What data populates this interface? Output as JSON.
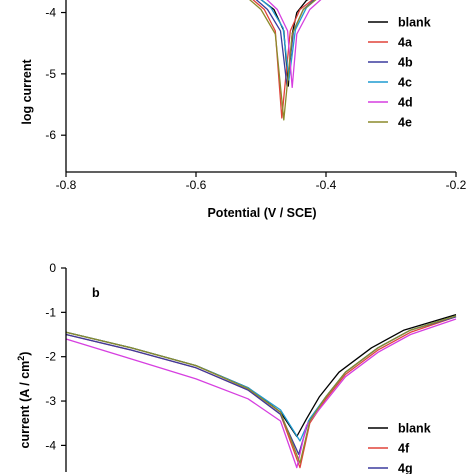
{
  "chart_data": [
    {
      "type": "line",
      "panel_label": "",
      "xlabel": "Potential  (V / SCE)",
      "ylabel": "log current ",
      "ylim": [
        -6.6,
        -3.6
      ],
      "xlim": [
        -0.8,
        -0.2
      ],
      "xticks": [
        "-0.8",
        "-0.6",
        "-0.4",
        "-0.2"
      ],
      "xtick_values": [
        -0.8,
        -0.6,
        -0.4,
        -0.2
      ],
      "yticks": [
        "-4",
        "-5",
        "-6"
      ],
      "ytick_values": [
        -4,
        -5,
        -6
      ],
      "legend_position": "right",
      "series": [
        {
          "name": "blank",
          "color": "#000000",
          "x": [
            -0.505,
            -0.48,
            -0.465,
            -0.458,
            -0.452,
            -0.445,
            -0.43,
            -0.39
          ],
          "y": [
            -3.75,
            -3.95,
            -4.3,
            -5.2,
            -4.35,
            -4.0,
            -3.8,
            -3.6
          ]
        },
        {
          "name": "4a",
          "color": "#e0433a",
          "x": [
            -0.52,
            -0.495,
            -0.478,
            -0.468,
            -0.455,
            -0.44,
            -0.4
          ],
          "y": [
            -3.72,
            -3.95,
            -4.3,
            -5.72,
            -4.3,
            -3.95,
            -3.62
          ]
        },
        {
          "name": "4b",
          "color": "#3b3b9e",
          "x": [
            -0.515,
            -0.49,
            -0.47,
            -0.46,
            -0.45,
            -0.435,
            -0.4
          ],
          "y": [
            -3.72,
            -3.95,
            -4.3,
            -5.2,
            -4.3,
            -3.95,
            -3.62
          ]
        },
        {
          "name": "4c",
          "color": "#1f9bd1",
          "x": [
            -0.51,
            -0.485,
            -0.466,
            -0.457,
            -0.447,
            -0.43,
            -0.395
          ],
          "y": [
            -3.7,
            -3.92,
            -4.25,
            -5.1,
            -4.28,
            -3.92,
            -3.6
          ]
        },
        {
          "name": "4d",
          "color": "#d63fe0",
          "x": [
            -0.5,
            -0.475,
            -0.459,
            -0.452,
            -0.445,
            -0.425,
            -0.39
          ],
          "y": [
            -3.7,
            -3.95,
            -4.3,
            -5.22,
            -4.35,
            -3.95,
            -3.62
          ]
        },
        {
          "name": "4e",
          "color": "#8c8a2b",
          "x": [
            -0.525,
            -0.5,
            -0.478,
            -0.465,
            -0.452,
            -0.435,
            -0.395
          ],
          "y": [
            -3.72,
            -3.95,
            -4.35,
            -5.75,
            -4.35,
            -3.95,
            -3.62
          ]
        }
      ]
    },
    {
      "type": "line",
      "panel_label": "b",
      "xlabel": "",
      "ylabel": "current (A / cm",
      "ylabel_sup": "2",
      "ylabel_tail": ")",
      "ylim": [
        -4.6,
        0
      ],
      "xlim": [
        -0.8,
        -0.2
      ],
      "xticks": [],
      "xtick_values": [],
      "yticks": [
        "0",
        "-1",
        "-2",
        "-3",
        "-4"
      ],
      "ytick_values": [
        0,
        -1,
        -2,
        -3,
        -4
      ],
      "legend_position": "bottom-right",
      "series": [
        {
          "name": "blank",
          "color": "#000000",
          "x": [
            -0.8,
            -0.7,
            -0.6,
            -0.52,
            -0.47,
            -0.445,
            -0.43,
            -0.41,
            -0.38,
            -0.33,
            -0.28,
            -0.2
          ],
          "y": [
            -1.45,
            -1.8,
            -2.2,
            -2.7,
            -3.25,
            -3.8,
            -3.4,
            -2.9,
            -2.35,
            -1.8,
            -1.4,
            -1.05
          ]
        },
        {
          "name": "4f",
          "color": "#e0433a",
          "x": [
            -0.8,
            -0.7,
            -0.6,
            -0.52,
            -0.47,
            -0.44,
            -0.425,
            -0.4,
            -0.37,
            -0.32,
            -0.27,
            -0.2
          ],
          "y": [
            -1.5,
            -1.85,
            -2.25,
            -2.75,
            -3.3,
            -4.5,
            -3.5,
            -2.95,
            -2.4,
            -1.85,
            -1.45,
            -1.1
          ]
        },
        {
          "name": "4g",
          "color": "#3b3b9e",
          "x": [
            -0.8,
            -0.7,
            -0.6,
            -0.52,
            -0.47,
            -0.442,
            -0.427,
            -0.4,
            -0.37,
            -0.32,
            -0.27,
            -0.2
          ],
          "y": [
            -1.5,
            -1.85,
            -2.25,
            -2.75,
            -3.3,
            -4.2,
            -3.45,
            -2.9,
            -2.35,
            -1.8,
            -1.4,
            -1.1
          ]
        },
        {
          "name": "",
          "color": "#1f9bd1",
          "x": [
            -0.8,
            -0.7,
            -0.6,
            -0.52,
            -0.47,
            -0.44,
            -0.425,
            -0.4,
            -0.37,
            -0.32,
            -0.27,
            -0.2
          ],
          "y": [
            -1.45,
            -1.8,
            -2.2,
            -2.7,
            -3.2,
            -3.9,
            -3.4,
            -2.9,
            -2.35,
            -1.8,
            -1.4,
            -1.08
          ]
        },
        {
          "name": "",
          "color": "#d63fe0",
          "x": [
            -0.8,
            -0.7,
            -0.6,
            -0.52,
            -0.47,
            -0.445,
            -0.43,
            -0.4,
            -0.37,
            -0.32,
            -0.27,
            -0.2
          ],
          "y": [
            -1.6,
            -2.05,
            -2.5,
            -2.95,
            -3.45,
            -4.5,
            -3.55,
            -3.0,
            -2.45,
            -1.9,
            -1.5,
            -1.15
          ]
        },
        {
          "name": "",
          "color": "#8c8a2b",
          "x": [
            -0.8,
            -0.7,
            -0.6,
            -0.52,
            -0.47,
            -0.44,
            -0.425,
            -0.4,
            -0.37,
            -0.32,
            -0.27,
            -0.2
          ],
          "y": [
            -1.45,
            -1.8,
            -2.2,
            -2.72,
            -3.25,
            -4.4,
            -3.45,
            -2.9,
            -2.35,
            -1.8,
            -1.4,
            -1.08
          ]
        }
      ]
    }
  ]
}
